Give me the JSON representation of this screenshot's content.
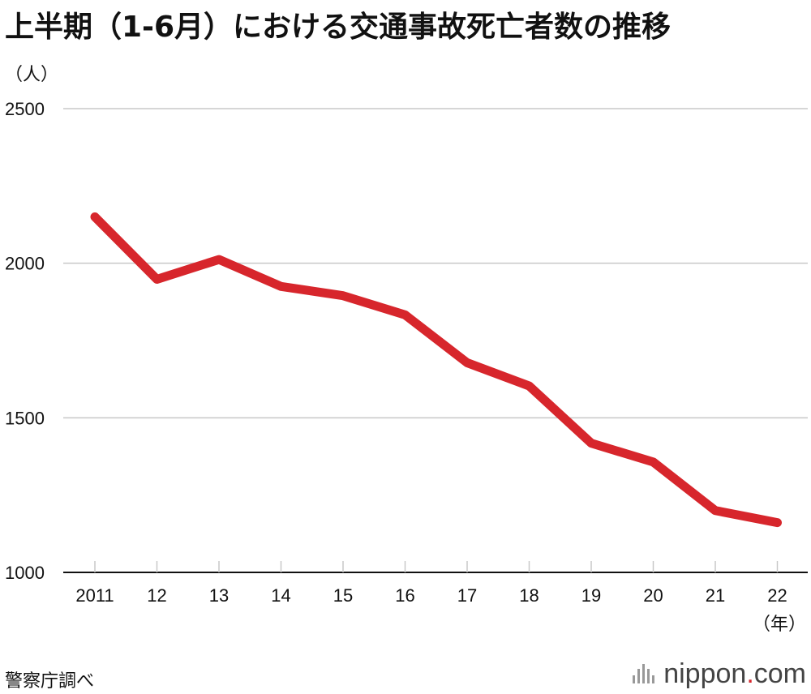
{
  "header": {
    "title": "上半期（1-6月）における交通事故死亡者数の推移",
    "y_unit": "（人）",
    "x_unit": "（年）"
  },
  "footer": {
    "source": "警察庁調べ",
    "logo_main": "nippon",
    "logo_dot": ".",
    "logo_suffix": "com"
  },
  "colors": {
    "line": "#d7262c",
    "grid": "#c8c8c8",
    "axis": "#111111"
  },
  "chart_data": {
    "type": "line",
    "title": "上半期（1-6月）における交通事故死亡者数の推移",
    "xlabel": "（年）",
    "ylabel": "（人）",
    "categories": [
      "2011",
      "12",
      "13",
      "14",
      "15",
      "16",
      "17",
      "18",
      "19",
      "20",
      "21",
      "22"
    ],
    "series": [
      {
        "values": [
          2150,
          1948,
          2012,
          1925,
          1895,
          1833,
          1678,
          1603,
          1418,
          1357,
          1200,
          1161
        ]
      }
    ],
    "yticks": [
      1000,
      1500,
      2000,
      2500
    ],
    "ylim": [
      1000,
      2500
    ],
    "grid": true,
    "legend": "none"
  }
}
